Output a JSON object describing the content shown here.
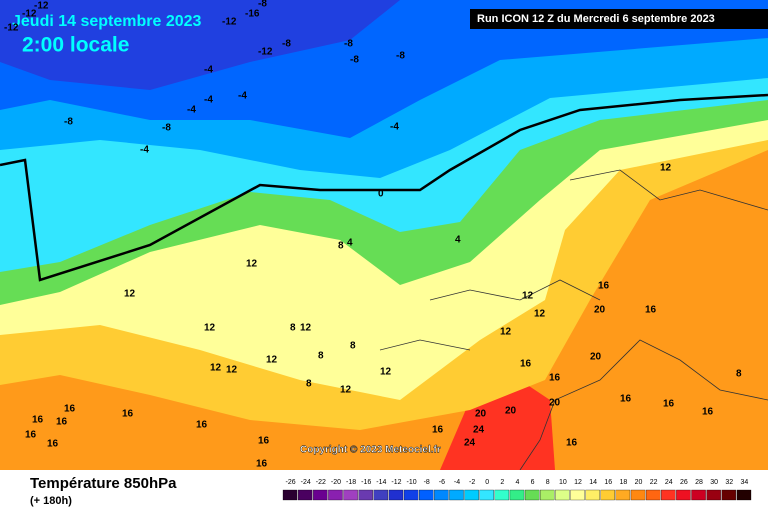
{
  "header": {
    "date": "Jeudi 14 septembre 2023",
    "time": "2:00 locale",
    "run": "Run ICON 12 Z du Mercredi 6 septembre 2023"
  },
  "footer": {
    "title": "Température 850hPa",
    "lead": "(+ 180h)",
    "copyright": "Copyright © 2023 Meteociel.fr"
  },
  "scale": [
    {
      "value": -26,
      "color": "#2a0030"
    },
    {
      "value": -24,
      "color": "#4a0060"
    },
    {
      "value": -22,
      "color": "#6a0090"
    },
    {
      "value": -20,
      "color": "#8a20b0"
    },
    {
      "value": -18,
      "color": "#a040c0"
    },
    {
      "value": -16,
      "color": "#6a3ab0"
    },
    {
      "value": -14,
      "color": "#4040c0"
    },
    {
      "value": -12,
      "color": "#2030d0"
    },
    {
      "value": -10,
      "color": "#1040e8"
    },
    {
      "value": -8,
      "color": "#0060ff"
    },
    {
      "value": -6,
      "color": "#0088ff"
    },
    {
      "value": -4,
      "color": "#00aaff"
    },
    {
      "value": -2,
      "color": "#00ccff"
    },
    {
      "value": 0,
      "color": "#33e6ff"
    },
    {
      "value": 2,
      "color": "#33ffcc"
    },
    {
      "value": 4,
      "color": "#33ee88"
    },
    {
      "value": 6,
      "color": "#66dd55"
    },
    {
      "value": 8,
      "color": "#aaee66"
    },
    {
      "value": 10,
      "color": "#ddff88"
    },
    {
      "value": 12,
      "color": "#ffff99"
    },
    {
      "value": 14,
      "color": "#ffee66"
    },
    {
      "value": 16,
      "color": "#ffcc33"
    },
    {
      "value": 18,
      "color": "#ffaa22"
    },
    {
      "value": 20,
      "color": "#ff8811"
    },
    {
      "value": 22,
      "color": "#ff6611"
    },
    {
      "value": 24,
      "color": "#ff3322"
    },
    {
      "value": 26,
      "color": "#ee1122"
    },
    {
      "value": 28,
      "color": "#cc0022"
    },
    {
      "value": 30,
      "color": "#990011"
    },
    {
      "value": 32,
      "color": "#660000"
    },
    {
      "value": 34,
      "color": "#220000"
    }
  ],
  "map_labels": [
    "-12",
    "-12",
    "-12",
    "-8",
    "-16",
    "-12",
    "-12",
    "-8",
    "-8",
    "-8",
    "-8",
    "-4",
    "-4",
    "-8",
    "-4",
    "-4",
    "-8",
    "-4",
    "-4",
    "0",
    "4",
    "8",
    "4",
    "12",
    "12",
    "12",
    "8",
    "12",
    "12",
    "8",
    "8",
    "12",
    "12",
    "12",
    "8",
    "12",
    "12",
    "12",
    "12",
    "16",
    "16",
    "20",
    "16",
    "20",
    "16",
    "20",
    "20",
    "20",
    "24",
    "24",
    "16",
    "16",
    "16",
    "16",
    "16",
    "16",
    "16",
    "16",
    "16",
    "16",
    "16",
    "16",
    "8",
    "16",
    "16",
    "12"
  ]
}
